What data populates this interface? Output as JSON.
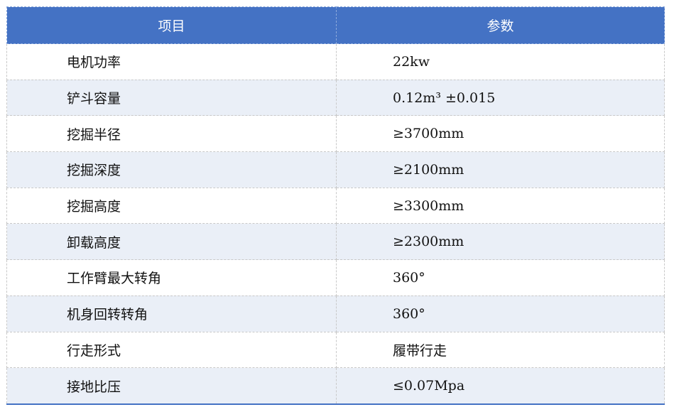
{
  "table": {
    "headers": [
      "项目",
      "参数"
    ],
    "rows": [
      [
        "电机功率",
        "22kw"
      ],
      [
        "铲斗容量",
        "0.12m³ ±0.015"
      ],
      [
        "挖掘半径",
        "≥3700mm"
      ],
      [
        "挖掘深度",
        "≥2100mm"
      ],
      [
        "挖掘高度",
        "≥3300mm"
      ],
      [
        "卸载高度",
        "≥2300mm"
      ],
      [
        "工作臂最大转角",
        "360°"
      ],
      [
        "机身回转转角",
        "360°"
      ],
      [
        "行走形式",
        "履带行走"
      ],
      [
        "接地比压",
        "≤0.07Mpa"
      ]
    ],
    "header_color": "#4472c4",
    "alt_row_color": "#eaeff7"
  }
}
